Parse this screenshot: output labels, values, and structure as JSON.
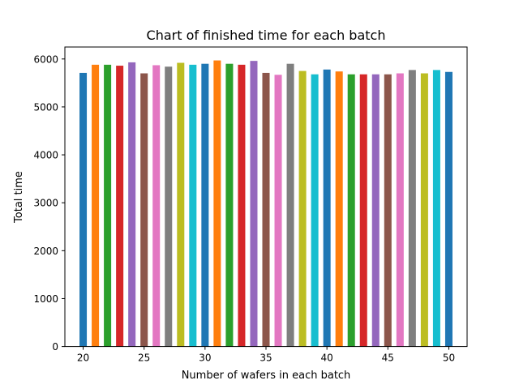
{
  "chart_data": {
    "type": "bar",
    "title": "Chart of finished time for each batch",
    "xlabel": "Number of wafers in each batch",
    "ylabel": "Total time",
    "xlim": [
      18.5,
      51.5
    ],
    "ylim": [
      0,
      6250
    ],
    "xticks": [
      20,
      25,
      30,
      35,
      40,
      45,
      50
    ],
    "yticks": [
      0,
      1000,
      2000,
      3000,
      4000,
      5000,
      6000
    ],
    "grid": false,
    "legend": "none",
    "bar_width": 0.6,
    "colors": [
      "#1f77b4",
      "#ff7f0e",
      "#2ca02c",
      "#d62728",
      "#9467bd",
      "#8c564b",
      "#e377c2",
      "#7f7f7f",
      "#bcbd22",
      "#17becf"
    ],
    "x": [
      20,
      21,
      22,
      23,
      24,
      25,
      26,
      27,
      28,
      29,
      30,
      31,
      32,
      33,
      34,
      35,
      36,
      37,
      38,
      39,
      40,
      41,
      42,
      43,
      44,
      45,
      46,
      47,
      48,
      49,
      50
    ],
    "values": [
      5710,
      5880,
      5880,
      5860,
      5930,
      5700,
      5870,
      5840,
      5920,
      5880,
      5900,
      5970,
      5900,
      5880,
      5960,
      5710,
      5670,
      5900,
      5750,
      5680,
      5780,
      5740,
      5680,
      5680,
      5680,
      5680,
      5700,
      5770,
      5700,
      5770,
      5730
    ]
  }
}
